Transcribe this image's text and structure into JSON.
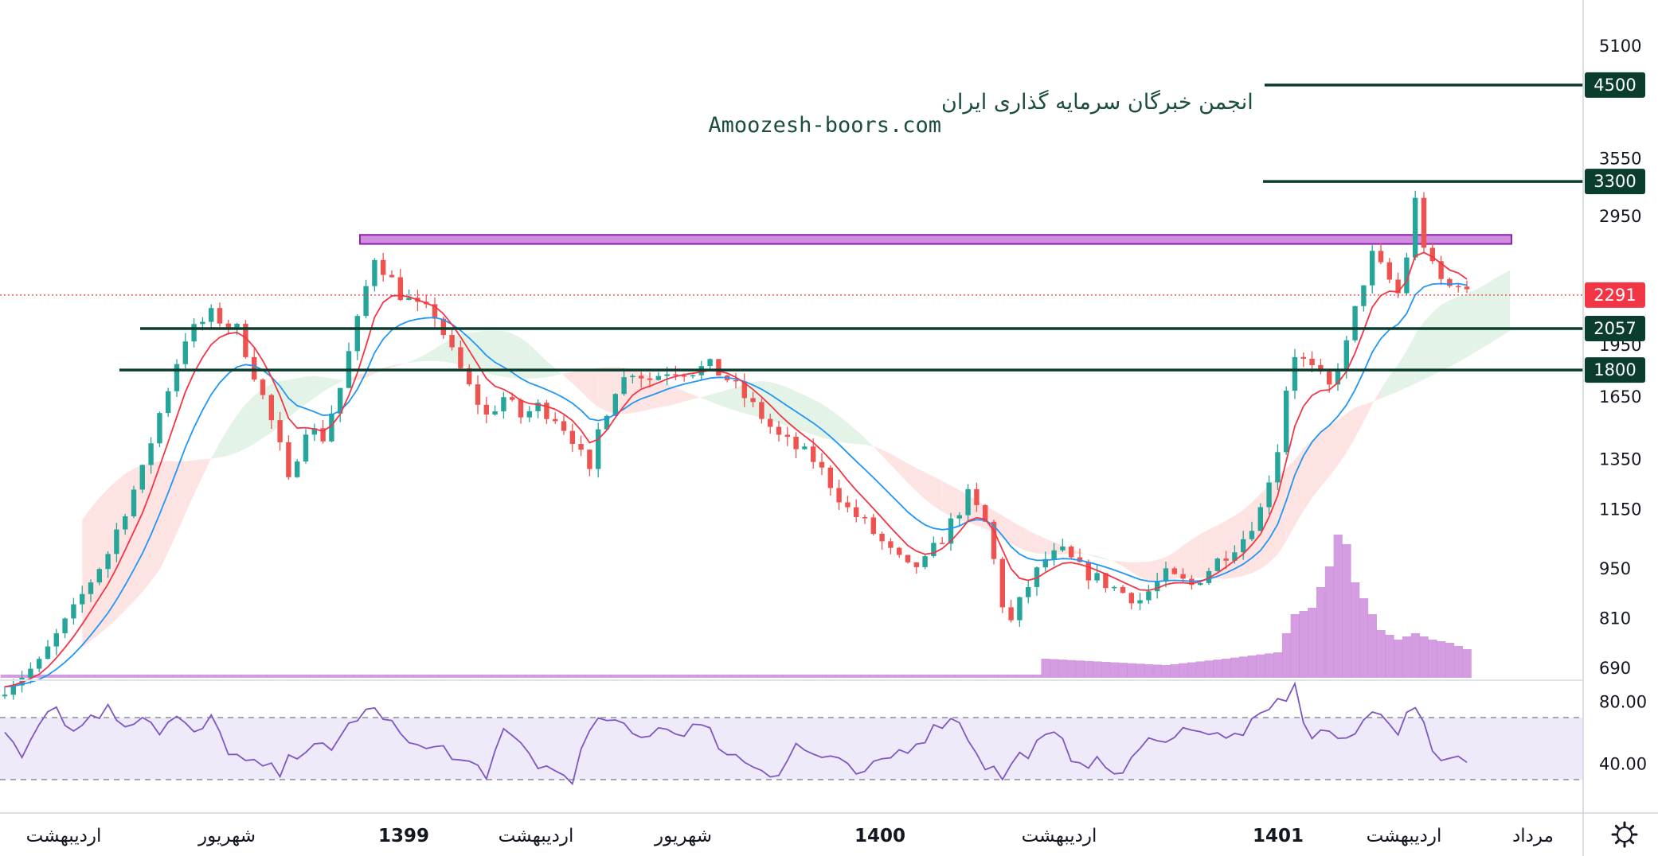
{
  "watermark": {
    "line1": "انجمن خبرگان سرمایه گذاری ایران",
    "line2": "Amoozesh-boors.com"
  },
  "colors": {
    "up": "#26a69a",
    "down": "#ef5350",
    "ma_fast": "#f23645",
    "ma_slow": "#2196f3",
    "level": "#0b3d2e",
    "zone_fill": "#d18de0",
    "zone_stroke": "#8e24aa",
    "rsi": "#7e57c2",
    "rsi_band": "#efeaf9",
    "volume": "#c67cd8",
    "last_price": "#f23645",
    "cloud_up": "#e4f3e7",
    "cloud_down": "#fde4e2"
  },
  "chart_data": {
    "type": "candlestick",
    "scale": "log",
    "price_axis": {
      "ticks": [
        690,
        810,
        950,
        1150,
        1350,
        1650,
        1950,
        2950,
        3550,
        5100
      ]
    },
    "last_price": 2291,
    "horizontal_levels": [
      {
        "value": 4500,
        "label": "4500"
      },
      {
        "value": 3300,
        "label": "3300"
      },
      {
        "value": 2057,
        "label": "2057"
      },
      {
        "value": 1800,
        "label": "1800"
      }
    ],
    "resistance_zone": {
      "low": 2700,
      "high": 2780
    },
    "time_axis": [
      {
        "label": "اردیبهشت",
        "bold": false
      },
      {
        "label": "شهریور",
        "bold": false
      },
      {
        "label": "1399",
        "bold": true
      },
      {
        "label": "اردیبهشت",
        "bold": false
      },
      {
        "label": "شهریور",
        "bold": false
      },
      {
        "label": "1400",
        "bold": true
      },
      {
        "label": "اردیبهشت",
        "bold": false
      },
      {
        "label": "1401",
        "bold": true
      },
      {
        "label": "اردیبهشت",
        "bold": false
      },
      {
        "label": "مرداد",
        "bold": false
      }
    ],
    "price_series": [
      [
        0,
        650
      ],
      [
        4,
        700
      ],
      [
        8,
        830
      ],
      [
        12,
        1000
      ],
      [
        16,
        1300
      ],
      [
        19,
        1700
      ],
      [
        21,
        2000
      ],
      [
        24,
        2150
      ],
      [
        27,
        2050
      ],
      [
        30,
        1650
      ],
      [
        32,
        1400
      ],
      [
        33,
        1250
      ],
      [
        35,
        1500
      ],
      [
        37,
        1450
      ],
      [
        39,
        1700
      ],
      [
        41,
        2100
      ],
      [
        43,
        2600
      ],
      [
        44,
        2500
      ],
      [
        46,
        2300
      ],
      [
        48,
        2200
      ],
      [
        50,
        2150
      ],
      [
        52,
        1900
      ],
      [
        54,
        1700
      ],
      [
        56,
        1550
      ],
      [
        58,
        1650
      ],
      [
        60,
        1550
      ],
      [
        62,
        1600
      ],
      [
        64,
        1550
      ],
      [
        66,
        1450
      ],
      [
        68,
        1280
      ],
      [
        69,
        1480
      ],
      [
        71,
        1700
      ],
      [
        73,
        1800
      ],
      [
        75,
        1750
      ],
      [
        77,
        1800
      ],
      [
        80,
        1800
      ],
      [
        82,
        1820
      ],
      [
        84,
        1750
      ],
      [
        86,
        1650
      ],
      [
        88,
        1550
      ],
      [
        90,
        1450
      ],
      [
        92,
        1400
      ],
      [
        94,
        1350
      ],
      [
        96,
        1250
      ],
      [
        98,
        1150
      ],
      [
        100,
        1100
      ],
      [
        103,
        1000
      ],
      [
        105,
        950
      ],
      [
        107,
        970
      ],
      [
        109,
        1050
      ],
      [
        110,
        1100
      ],
      [
        111,
        1150
      ],
      [
        112,
        1200
      ],
      [
        114,
        1100
      ],
      [
        116,
        850
      ],
      [
        117,
        800
      ],
      [
        119,
        900
      ],
      [
        121,
        980
      ],
      [
        123,
        1000
      ],
      [
        125,
        950
      ],
      [
        127,
        920
      ],
      [
        130,
        880
      ],
      [
        132,
        860
      ],
      [
        135,
        930
      ],
      [
        138,
        900
      ],
      [
        140,
        950
      ],
      [
        142,
        1000
      ],
      [
        144,
        1050
      ],
      [
        146,
        1150
      ],
      [
        148,
        1400
      ],
      [
        149,
        1700
      ],
      [
        150,
        1900
      ],
      [
        152,
        1800
      ],
      [
        154,
        1700
      ],
      [
        156,
        1950
      ],
      [
        158,
        2400
      ],
      [
        159,
        2600
      ],
      [
        160,
        2500
      ],
      [
        161,
        2400
      ],
      [
        162,
        2300
      ],
      [
        163,
        2600
      ],
      [
        164,
        3100
      ],
      [
        165,
        2700
      ],
      [
        166,
        2500
      ],
      [
        167,
        2400
      ],
      [
        168,
        2350
      ],
      [
        169,
        2400
      ],
      [
        170,
        2291
      ]
    ],
    "volume_series": [
      [
        0,
        0.01
      ],
      [
        120,
        0.01
      ],
      [
        121,
        0.06
      ],
      [
        128,
        0.05
      ],
      [
        135,
        0.04
      ],
      [
        142,
        0.06
      ],
      [
        148,
        0.08
      ],
      [
        150,
        0.2
      ],
      [
        152,
        0.22
      ],
      [
        154,
        0.35
      ],
      [
        155,
        0.45
      ],
      [
        156,
        0.42
      ],
      [
        157,
        0.3
      ],
      [
        158,
        0.25
      ],
      [
        160,
        0.15
      ],
      [
        162,
        0.12
      ],
      [
        164,
        0.14
      ],
      [
        166,
        0.12
      ],
      [
        168,
        0.11
      ],
      [
        170,
        0.09
      ]
    ],
    "rsi": {
      "upper": 70,
      "lower": 30,
      "ticks": [
        80,
        40
      ],
      "series": [
        [
          0,
          62
        ],
        [
          2,
          48
        ],
        [
          4,
          70
        ],
        [
          6,
          78
        ],
        [
          8,
          60
        ],
        [
          10,
          72
        ],
        [
          12,
          75
        ],
        [
          14,
          66
        ],
        [
          16,
          73
        ],
        [
          18,
          62
        ],
        [
          20,
          70
        ],
        [
          22,
          58
        ],
        [
          24,
          68
        ],
        [
          26,
          50
        ],
        [
          28,
          40
        ],
        [
          30,
          38
        ],
        [
          32,
          34
        ],
        [
          34,
          48
        ],
        [
          36,
          55
        ],
        [
          38,
          45
        ],
        [
          40,
          66
        ],
        [
          42,
          75
        ],
        [
          44,
          72
        ],
        [
          46,
          58
        ],
        [
          48,
          48
        ],
        [
          50,
          56
        ],
        [
          52,
          43
        ],
        [
          54,
          40
        ],
        [
          56,
          35
        ],
        [
          58,
          58
        ],
        [
          60,
          52
        ],
        [
          62,
          40
        ],
        [
          64,
          35
        ],
        [
          66,
          32
        ],
        [
          68,
          60
        ],
        [
          70,
          70
        ],
        [
          72,
          62
        ],
        [
          74,
          56
        ],
        [
          76,
          66
        ],
        [
          78,
          60
        ],
        [
          80,
          65
        ],
        [
          82,
          60
        ],
        [
          84,
          48
        ],
        [
          86,
          42
        ],
        [
          88,
          38
        ],
        [
          90,
          34
        ],
        [
          92,
          52
        ],
        [
          94,
          46
        ],
        [
          96,
          44
        ],
        [
          98,
          36
        ],
        [
          100,
          32
        ],
        [
          102,
          42
        ],
        [
          104,
          48
        ],
        [
          106,
          55
        ],
        [
          108,
          62
        ],
        [
          110,
          72
        ],
        [
          112,
          58
        ],
        [
          114,
          40
        ],
        [
          116,
          32
        ],
        [
          118,
          45
        ],
        [
          120,
          52
        ],
        [
          122,
          58
        ],
        [
          124,
          46
        ],
        [
          126,
          42
        ],
        [
          128,
          38
        ],
        [
          130,
          34
        ],
        [
          132,
          48
        ],
        [
          134,
          60
        ],
        [
          136,
          56
        ],
        [
          138,
          66
        ],
        [
          140,
          60
        ],
        [
          142,
          55
        ],
        [
          144,
          62
        ],
        [
          146,
          68
        ],
        [
          148,
          80
        ],
        [
          150,
          88
        ],
        [
          151,
          70
        ],
        [
          152,
          58
        ],
        [
          154,
          62
        ],
        [
          156,
          52
        ],
        [
          158,
          68
        ],
        [
          160,
          76
        ],
        [
          162,
          62
        ],
        [
          164,
          78
        ],
        [
          165,
          62
        ],
        [
          166,
          48
        ],
        [
          168,
          44
        ],
        [
          170,
          46
        ]
      ]
    }
  }
}
